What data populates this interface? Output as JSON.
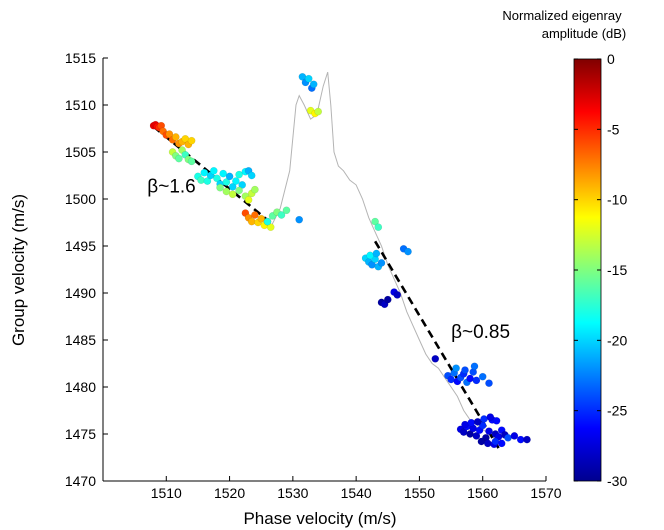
{
  "chart_data": {
    "type": "scatter",
    "xlabel": "Phase velocity (m/s)",
    "ylabel": "Group velocity (m/s)",
    "xlim": [
      1500,
      1570
    ],
    "ylim": [
      1470,
      1515
    ],
    "xticks": [
      1510,
      1520,
      1530,
      1540,
      1550,
      1560,
      1570
    ],
    "yticks": [
      1470,
      1475,
      1480,
      1485,
      1490,
      1495,
      1500,
      1505,
      1510,
      1515
    ],
    "grid": false,
    "colorbar": {
      "title_line1": "Normalized eigenray",
      "title_line2": "amplitude (dB)",
      "range": [
        -30,
        0
      ],
      "ticks": [
        0,
        -5,
        -10,
        -15,
        -20,
        -25,
        -30
      ],
      "colormap": "jet"
    },
    "annotations": [
      {
        "text": "β~1.6",
        "x": 1507,
        "y": 1500.7
      },
      {
        "text": "β~0.85",
        "x": 1555,
        "y": 1485.2
      }
    ],
    "fit_lines": [
      {
        "x": [
          1508,
          1527
        ],
        "y": [
          1507.7,
          1497.2
        ]
      },
      {
        "x": [
          1543,
          1562.5
        ],
        "y": [
          1495.5,
          1473.5
        ]
      }
    ],
    "reference_curve": {
      "color": "#b4b4b4",
      "x": [
        1526.5,
        1528,
        1529.5,
        1530.5,
        1531,
        1531.8,
        1532.8,
        1533.8,
        1534.8,
        1535.5,
        1536,
        1536.5,
        1537.2,
        1538,
        1539,
        1540,
        1541,
        1542,
        1543,
        1544,
        1545,
        1546,
        1547,
        1548,
        1549,
        1550,
        1551,
        1552,
        1553,
        1554,
        1555,
        1556,
        1557,
        1558,
        1559,
        1560,
        1561,
        1562
      ],
      "y": [
        1497,
        1499,
        1503,
        1510,
        1511,
        1510,
        1508.5,
        1509,
        1512,
        1513.5,
        1510,
        1505,
        1503.5,
        1503,
        1502,
        1501.5,
        1500,
        1498,
        1496.5,
        1495,
        1493,
        1491.5,
        1490,
        1488,
        1486.5,
        1485,
        1483.5,
        1482.5,
        1482,
        1481,
        1480,
        1479,
        1477.5,
        1476.5,
        1476,
        1475.5,
        1475,
        1474.5
      ]
    },
    "series": [
      {
        "x": [
          1508.0,
          1508.3,
          1508.6,
          1508.9,
          1509.2
        ],
        "y": [
          1507.8,
          1507.9,
          1507.7,
          1507.6,
          1507.8
        ],
        "amp_db": [
          -3,
          -3,
          -4,
          -5,
          -6
        ]
      },
      {
        "x": [
          1509.5,
          1510.0,
          1510.5,
          1511.0,
          1511.5,
          1512.0,
          1512.5,
          1513.0,
          1513.5,
          1514.0
        ],
        "y": [
          1507.2,
          1506.8,
          1506.9,
          1506.3,
          1506.6,
          1505.9,
          1506.1,
          1506.4,
          1505.8,
          1506.2
        ],
        "amp_db": [
          -7,
          -6,
          -8,
          -7,
          -9,
          -8,
          -9,
          -10,
          -9,
          -10
        ]
      },
      {
        "x": [
          1511.0,
          1511.5,
          1512.0,
          1512.5,
          1513.0,
          1513.5,
          1514.0
        ],
        "y": [
          1505.0,
          1504.6,
          1504.3,
          1505.2,
          1504.7,
          1504.2,
          1504.0
        ],
        "amp_db": [
          -13,
          -15,
          -16,
          -14,
          -17,
          -15,
          -16
        ]
      },
      {
        "x": [
          1515.0,
          1515.5,
          1516.0,
          1516.5,
          1517.0,
          1517.5,
          1518.0,
          1518.5,
          1519.0,
          1519.5,
          1520.0,
          1520.5,
          1521.0,
          1521.5,
          1522.0,
          1522.5,
          1523.0,
          1523.5
        ],
        "y": [
          1502.4,
          1502.0,
          1502.8,
          1501.9,
          1502.5,
          1503.0,
          1502.2,
          1501.6,
          1502.7,
          1501.8,
          1502.4,
          1501.3,
          1501.9,
          1502.6,
          1501.5,
          1502.9,
          1503.0,
          1502.5
        ],
        "amp_db": [
          -18,
          -17,
          -19,
          -18,
          -20,
          -19,
          -18,
          -20,
          -19,
          -18,
          -21,
          -20,
          -19,
          -18,
          -20,
          -19,
          -21,
          -20
        ]
      },
      {
        "x": [
          1518.5,
          1519.5,
          1520.5,
          1521.5,
          1522.5,
          1523.0,
          1523.5,
          1524.0
        ],
        "y": [
          1501.2,
          1500.8,
          1500.5,
          1500.9,
          1500.3,
          1499.9,
          1500.6,
          1501.0
        ],
        "amp_db": [
          -15,
          -14,
          -13,
          -15,
          -14,
          -12,
          -13,
          -14
        ]
      },
      {
        "x": [
          1522.5,
          1523.0,
          1523.5,
          1524.0,
          1524.5,
          1525.0,
          1525.5,
          1526.0,
          1526.5
        ],
        "y": [
          1498.5,
          1498.0,
          1497.6,
          1498.3,
          1497.5,
          1497.9,
          1497.2,
          1497.6,
          1497.0
        ],
        "amp_db": [
          -6,
          -8,
          -9,
          -7,
          -10,
          -9,
          -11,
          -10,
          -12
        ]
      },
      {
        "x": [
          1526.0,
          1526.8,
          1527.5,
          1528.2,
          1529.0
        ],
        "y": [
          1497.6,
          1498.2,
          1498.6,
          1498.3,
          1498.8
        ],
        "amp_db": [
          -18,
          -16,
          -15,
          -17,
          -16
        ]
      },
      {
        "x": [
          1531.0
        ],
        "y": [
          1497.8
        ],
        "amp_db": [
          -22
        ]
      },
      {
        "x": [
          1531.5,
          1532.0,
          1532.5,
          1533.0,
          1533.3
        ],
        "y": [
          1513.0,
          1512.4,
          1512.8,
          1511.8,
          1512.2
        ],
        "amp_db": [
          -21,
          -22,
          -20,
          -23,
          -21
        ]
      },
      {
        "x": [
          1532.8,
          1533.5,
          1534.0
        ],
        "y": [
          1509.4,
          1509.1,
          1509.3
        ],
        "amp_db": [
          -12,
          -11,
          -13
        ]
      },
      {
        "x": [
          1543.0,
          1543.5
        ],
        "y": [
          1497.6,
          1497.0
        ],
        "amp_db": [
          -16,
          -17
        ]
      },
      {
        "x": [
          1541.5,
          1542.0,
          1542.5,
          1543.0,
          1543.5,
          1544.0,
          1542.2,
          1543.2
        ],
        "y": [
          1493.7,
          1493.3,
          1493.0,
          1493.6,
          1492.8,
          1493.2,
          1494.0,
          1494.2
        ],
        "amp_db": [
          -20,
          -21,
          -22,
          -20,
          -21,
          -22,
          -19,
          -21
        ]
      },
      {
        "x": [
          1547.5,
          1548.2
        ],
        "y": [
          1494.7,
          1494.4
        ],
        "amp_db": [
          -23,
          -22
        ]
      },
      {
        "x": [
          1544.0,
          1544.5,
          1545.0,
          1546.0,
          1546.5
        ],
        "y": [
          1489.0,
          1488.8,
          1489.3,
          1490.1,
          1489.8
        ],
        "amp_db": [
          -29,
          -28,
          -29,
          -27,
          -28
        ]
      },
      {
        "x": [
          1552.5
        ],
        "y": [
          1483.0
        ],
        "amp_db": [
          -28
        ]
      },
      {
        "x": [
          1554.5,
          1555.0,
          1555.5,
          1556.0,
          1556.5,
          1557.0,
          1557.5,
          1558.0,
          1558.5,
          1559.0,
          1560.0,
          1561.0,
          1555.8,
          1557.2,
          1558.7
        ],
        "y": [
          1481.2,
          1480.8,
          1481.5,
          1480.6,
          1481.0,
          1481.4,
          1480.5,
          1480.9,
          1481.6,
          1480.7,
          1481.1,
          1480.4,
          1482.0,
          1481.8,
          1482.2
        ],
        "amp_db": [
          -24,
          -25,
          -23,
          -26,
          -24,
          -25,
          -23,
          -26,
          -24,
          -25,
          -23,
          -24,
          -22,
          -24,
          -23
        ]
      },
      {
        "x": [
          1556.5,
          1557.0,
          1557.5,
          1558.0,
          1558.5,
          1559.0,
          1559.5,
          1560.0,
          1560.5,
          1561.0,
          1561.5,
          1562.0,
          1562.5,
          1563.0,
          1563.5,
          1557.2,
          1558.2,
          1559.2,
          1560.2,
          1561.2,
          1562.2,
          1559.8,
          1560.8,
          1561.8
        ],
        "y": [
          1475.5,
          1475.2,
          1475.8,
          1475.0,
          1475.6,
          1474.8,
          1475.4,
          1475.9,
          1474.6,
          1475.3,
          1476.5,
          1475.0,
          1474.7,
          1475.4,
          1474.9,
          1476.0,
          1476.2,
          1476.3,
          1476.6,
          1476.8,
          1476.4,
          1474.2,
          1474.0,
          1473.9
        ],
        "amp_db": [
          -27,
          -28,
          -26,
          -29,
          -27,
          -28,
          -26,
          -25,
          -29,
          -27,
          -26,
          -28,
          -27,
          -26,
          -28,
          -27,
          -26,
          -28,
          -25,
          -27,
          -26,
          -29,
          -28,
          -27
        ]
      },
      {
        "x": [
          1562.0,
          1563.0,
          1564.0,
          1565.0,
          1566.0,
          1567.0
        ],
        "y": [
          1474.2,
          1474.0,
          1474.6,
          1474.8,
          1474.4,
          1474.4
        ],
        "amp_db": [
          -25,
          -26,
          -24,
          -27,
          -26,
          -28
        ]
      }
    ]
  }
}
